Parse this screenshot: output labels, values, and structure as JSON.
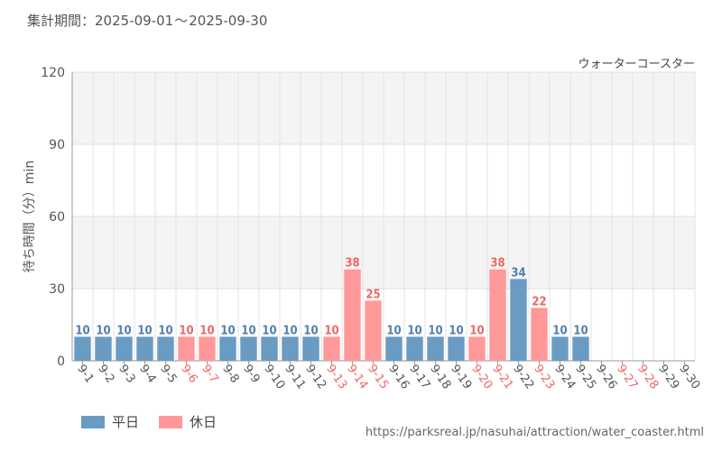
{
  "header": {
    "period_label": "集計期間：",
    "period_start": "2025-09-01",
    "period_sep": "～",
    "period_end": "2025-09-30"
  },
  "colors": {
    "weekday": "#6a9bc3",
    "holiday": "#ff9999",
    "weekday_text": "#4f7fae",
    "holiday_text": "#ee6666",
    "axis_text": "#555555"
  },
  "legend": {
    "weekday_label": "平日",
    "holiday_label": "休日"
  },
  "footer": {
    "source_url": "https://parksreal.jp/nasuhai/attraction/water_coaster.html"
  },
  "chart_data": {
    "type": "bar",
    "title": "ウォーターコースター",
    "ylabel": "待ち時間（分）min",
    "xlabel": "",
    "ylim": [
      0,
      120
    ],
    "yticks": [
      0,
      30,
      60,
      90,
      120
    ],
    "bands": [
      [
        90,
        120
      ],
      [
        30,
        60
      ]
    ],
    "grid": true,
    "legend_position": "bottom-left",
    "categories": [
      "9-1",
      "9-2",
      "9-3",
      "9-4",
      "9-5",
      "9-6",
      "9-7",
      "9-8",
      "9-9",
      "9-10",
      "9-11",
      "9-12",
      "9-13",
      "9-14",
      "9-15",
      "9-16",
      "9-17",
      "9-18",
      "9-19",
      "9-20",
      "9-21",
      "9-22",
      "9-23",
      "9-24",
      "9-25",
      "9-26",
      "9-27",
      "9-28",
      "9-29",
      "9-30"
    ],
    "values": [
      10,
      10,
      10,
      10,
      10,
      10,
      10,
      10,
      10,
      10,
      10,
      10,
      10,
      38,
      25,
      10,
      10,
      10,
      10,
      10,
      38,
      34,
      22,
      10,
      10,
      null,
      null,
      null,
      null,
      null
    ],
    "day_type": [
      "weekday",
      "weekday",
      "weekday",
      "weekday",
      "weekday",
      "holiday",
      "holiday",
      "weekday",
      "weekday",
      "weekday",
      "weekday",
      "weekday",
      "holiday",
      "holiday",
      "holiday",
      "weekday",
      "weekday",
      "weekday",
      "weekday",
      "holiday",
      "holiday",
      "weekday",
      "holiday",
      "weekday",
      "weekday",
      "weekday",
      "holiday",
      "holiday",
      "weekday",
      "weekday"
    ],
    "series": [
      {
        "name": "平日"
      },
      {
        "name": "休日"
      }
    ]
  }
}
